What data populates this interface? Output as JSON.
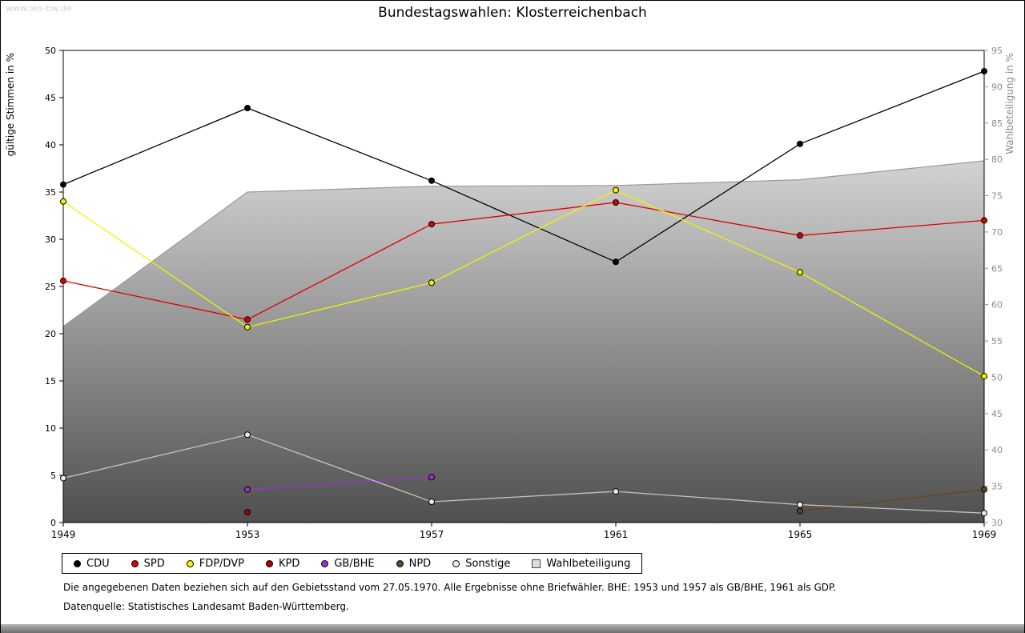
{
  "watermark": "www.leo-bw.de",
  "title": "Bundestagswahlen: Klosterreichenbach",
  "chart_data": {
    "type": "line+area",
    "x": [
      1949,
      1953,
      1957,
      1961,
      1965,
      1969
    ],
    "left_axis": {
      "label": "gültige Stimmen in %",
      "min": 0,
      "max": 50,
      "tick_step": 5
    },
    "right_axis": {
      "label": "Wahlbeteiligung in %",
      "min": 30,
      "max": 95,
      "tick_step": 5
    },
    "series": [
      {
        "name": "CDU",
        "axis": "left",
        "color": "#000000",
        "values": [
          35.8,
          43.9,
          36.2,
          27.6,
          40.1,
          47.8
        ]
      },
      {
        "name": "SPD",
        "axis": "left",
        "color": "#dd0000",
        "values": [
          25.6,
          21.5,
          31.6,
          33.9,
          30.4,
          32.0
        ]
      },
      {
        "name": "FDP/DVP",
        "axis": "left",
        "color": "#f2f200",
        "values": [
          34.0,
          20.7,
          25.4,
          35.2,
          26.5,
          15.5
        ]
      },
      {
        "name": "KPD",
        "axis": "left",
        "color": "#aa0000",
        "values": [
          null,
          1.1,
          null,
          null,
          null,
          null
        ]
      },
      {
        "name": "GB/BHE",
        "axis": "left",
        "color": "#9933cc",
        "values": [
          null,
          3.5,
          4.8,
          null,
          null,
          null
        ]
      },
      {
        "name": "NPD",
        "axis": "left",
        "color": "#654321",
        "values": [
          null,
          null,
          null,
          null,
          1.2,
          3.5
        ]
      },
      {
        "name": "Sonstige",
        "axis": "left",
        "color": "#c4c4c4",
        "marker_fill": "#ececec",
        "values": [
          4.7,
          9.3,
          2.2,
          3.3,
          1.9,
          1.0
        ]
      }
    ],
    "area_series": {
      "name": "Wahlbeteiligung",
      "axis": "right",
      "values": [
        57.0,
        75.5,
        76.3,
        76.4,
        77.2,
        79.8
      ],
      "fill_top": "#fbfbfb",
      "fill_bottom": "#4f4f4f",
      "edge_color": "#999999",
      "legend_fill": "#dcdcdc"
    },
    "legend_position": "bottom"
  },
  "footnotes": [
    "Die angegebenen Daten beziehen sich auf den Gebietsstand vom 27.05.1970. Alle Ergebnisse ohne Briefwähler. BHE: 1953 und 1957 als GB/BHE, 1961 als GDP.",
    "Datenquelle: Statistisches Landesamt Baden-Württemberg."
  ]
}
